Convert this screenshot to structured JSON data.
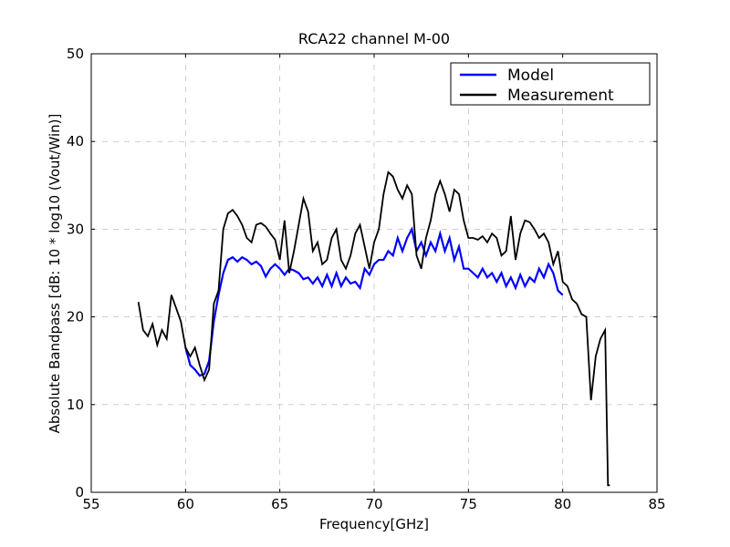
{
  "chart_data": {
    "type": "line",
    "title": "RCA22 channel M-00",
    "xlabel": "Frequency[GHz]",
    "ylabel": "Absolute Bandpass [dB: 10 * log10 (Vout/Win)]",
    "xlim": [
      55,
      85
    ],
    "xticks": [
      55,
      60,
      65,
      70,
      75,
      80,
      85
    ],
    "ylim": [
      0,
      50
    ],
    "yticks": [
      0,
      10,
      20,
      30,
      40,
      50
    ],
    "grid": true,
    "legend": "upper right",
    "series": [
      {
        "name": "Model",
        "color": "#0000ff",
        "x": [
          60,
          60.25,
          60.5,
          60.75,
          61,
          61.25,
          61.5,
          61.75,
          62,
          62.25,
          62.5,
          62.75,
          63,
          63.25,
          63.5,
          63.75,
          64,
          64.25,
          64.5,
          64.75,
          65,
          65.25,
          65.5,
          65.75,
          66,
          66.25,
          66.5,
          66.75,
          67,
          67.25,
          67.5,
          67.75,
          68,
          68.25,
          68.5,
          68.75,
          69,
          69.25,
          69.5,
          69.75,
          70,
          70.25,
          70.5,
          70.75,
          71,
          71.25,
          71.5,
          71.75,
          72,
          72.25,
          72.5,
          72.75,
          73,
          73.25,
          73.5,
          73.75,
          74,
          74.25,
          74.5,
          74.75,
          75,
          75.25,
          75.5,
          75.75,
          76,
          76.25,
          76.5,
          76.75,
          77,
          77.25,
          77.5,
          77.75,
          78,
          78.25,
          78.5,
          78.75,
          79,
          79.25,
          79.5,
          79.75,
          80
        ],
        "values": [
          16.5,
          14.5,
          14,
          13.3,
          13.5,
          15,
          19.5,
          22.5,
          25,
          26.5,
          26.8,
          26.3,
          26.8,
          26.5,
          26,
          26.3,
          25.8,
          24.6,
          25.5,
          26,
          25.5,
          24.8,
          25.5,
          25.3,
          25,
          24.3,
          24.5,
          23.8,
          24.5,
          23.5,
          24.8,
          23.5,
          25,
          23.5,
          24.5,
          23.8,
          24,
          23.3,
          25.5,
          24.8,
          26,
          26.5,
          26.5,
          27.5,
          27,
          29,
          27.5,
          29,
          30,
          27.5,
          28.5,
          27,
          28.5,
          27.5,
          29.5,
          27.5,
          29,
          26.5,
          28,
          25.5,
          25.5,
          25,
          24.5,
          25.5,
          24.5,
          25,
          24,
          25,
          23.5,
          24.5,
          23.3,
          24.8,
          23.5,
          24.5,
          24,
          25.5,
          24.5,
          26,
          25,
          23,
          22.5
        ]
      },
      {
        "name": "Measurement",
        "color": "#000000",
        "x": [
          57.5,
          57.75,
          58,
          58.25,
          58.5,
          58.75,
          59,
          59.25,
          59.5,
          59.75,
          60,
          60.25,
          60.5,
          60.75,
          61,
          61.25,
          61.5,
          61.75,
          62,
          62.25,
          62.5,
          62.75,
          63,
          63.25,
          63.5,
          63.75,
          64,
          64.25,
          64.5,
          64.75,
          65,
          65.25,
          65.5,
          65.75,
          66,
          66.25,
          66.5,
          66.75,
          67,
          67.25,
          67.5,
          67.75,
          68,
          68.25,
          68.5,
          68.75,
          69,
          69.25,
          69.5,
          69.75,
          70,
          70.25,
          70.5,
          70.75,
          71,
          71.25,
          71.5,
          71.75,
          72,
          72.25,
          72.5,
          72.75,
          73,
          73.25,
          73.5,
          73.75,
          74,
          74.25,
          74.5,
          74.75,
          75,
          75.25,
          75.5,
          75.75,
          76,
          76.25,
          76.5,
          76.75,
          77,
          77.25,
          77.5,
          77.75,
          78,
          78.25,
          78.5,
          78.75,
          79,
          79.25,
          79.5,
          79.75,
          80,
          80.25,
          80.5,
          80.75,
          81,
          81.25,
          81.5,
          81.75,
          82,
          82.25,
          82.4,
          82.5
        ],
        "values": [
          21.7,
          18.5,
          17.8,
          19.2,
          16.8,
          18.5,
          17.5,
          22.5,
          21,
          19.5,
          16.5,
          15.5,
          16.5,
          14.5,
          12.8,
          14,
          21.5,
          23,
          30,
          31.8,
          32.2,
          31.5,
          30.5,
          29,
          28.5,
          30.5,
          30.7,
          30.3,
          29.5,
          28.8,
          26.5,
          31,
          25,
          27.5,
          30.5,
          33.5,
          32,
          27.5,
          28.5,
          26,
          26.5,
          29,
          30,
          26.5,
          25.5,
          27,
          29.5,
          30.5,
          28,
          25.5,
          28.5,
          30,
          34,
          36.5,
          36,
          34.5,
          33.5,
          35,
          34,
          27,
          25.5,
          29,
          31,
          34,
          35.5,
          34,
          32,
          34.5,
          34,
          31,
          29,
          29,
          28.8,
          29.2,
          28.5,
          29.5,
          29,
          27,
          27.5,
          31.5,
          26.5,
          29.5,
          31,
          30.8,
          30,
          29,
          29.5,
          28.5,
          26,
          27.5,
          24,
          23.5,
          22,
          21.5,
          20.3,
          20,
          10.5,
          15.5,
          17.5,
          18.5,
          0.8,
          0.8
        ]
      }
    ]
  }
}
